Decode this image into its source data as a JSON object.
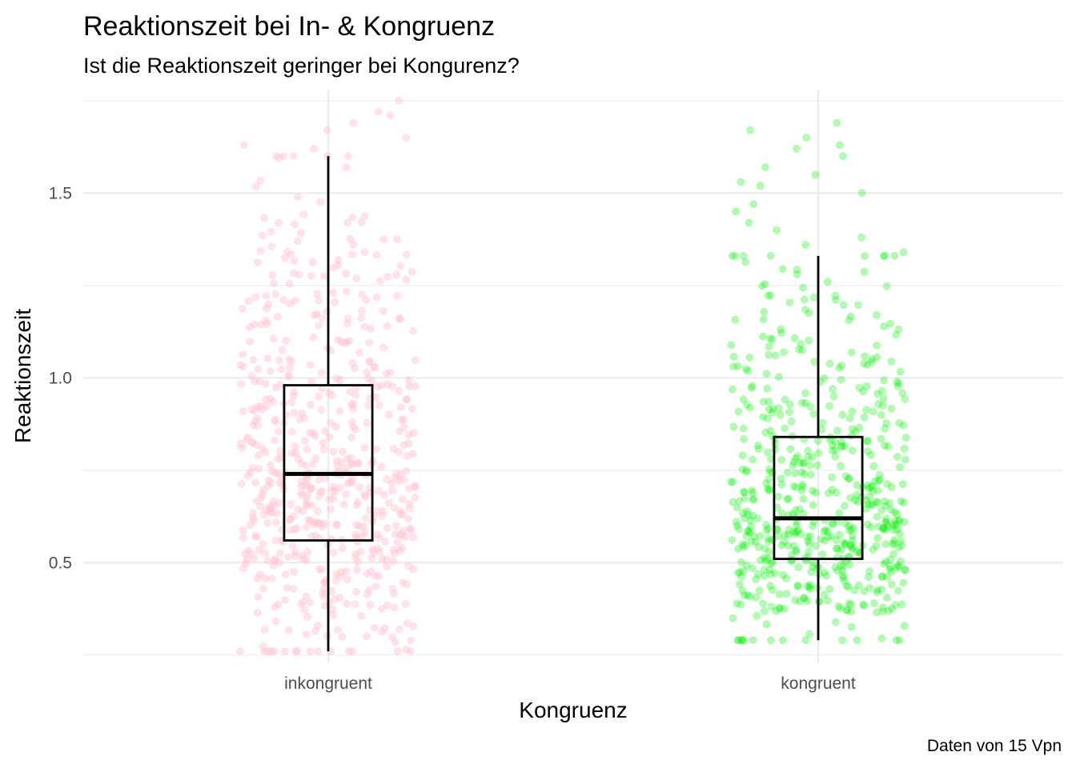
{
  "chart_data": {
    "type": "box",
    "title": "Reaktionszeit bei In- & Kongruenz",
    "subtitle": "Ist die Reaktionszeit geringer bei Kongurenz?",
    "xlabel": "Kongruenz",
    "ylabel": "Reaktionszeit",
    "caption": "Daten von 15 Vpn",
    "categories": [
      "inkongruent",
      "kongruent"
    ],
    "ylim": [
      0.23,
      1.78
    ],
    "yticks": [
      0.5,
      1.0,
      1.5
    ],
    "ytick_labels": [
      "0.5",
      "1.0",
      "1.5"
    ],
    "y_minor_ticks": [
      0.25,
      0.75,
      1.25,
      1.75
    ],
    "grid": true,
    "legend": "none",
    "jitter": true,
    "series": [
      {
        "category": "inkongruent",
        "color": "#ffc0cb",
        "point_opacity": 0.45,
        "n_points": 600,
        "box": {
          "whisker_low": 0.26,
          "q1": 0.56,
          "median": 0.74,
          "q3": 0.98,
          "whisker_high": 1.6
        },
        "outliers_high": [
          1.62,
          1.63,
          1.65,
          1.67,
          1.69,
          1.71,
          1.72,
          1.75
        ]
      },
      {
        "category": "kongruent",
        "color": "#00ee00",
        "point_opacity": 0.3,
        "n_points": 600,
        "box": {
          "whisker_low": 0.29,
          "q1": 0.51,
          "median": 0.62,
          "q3": 0.84,
          "whisker_high": 1.33
        },
        "outliers_high": [
          1.34,
          1.36,
          1.38,
          1.4,
          1.42,
          1.45,
          1.47,
          1.5,
          1.52,
          1.53,
          1.55,
          1.57,
          1.6,
          1.62,
          1.63,
          1.65,
          1.67,
          1.69
        ]
      }
    ]
  }
}
